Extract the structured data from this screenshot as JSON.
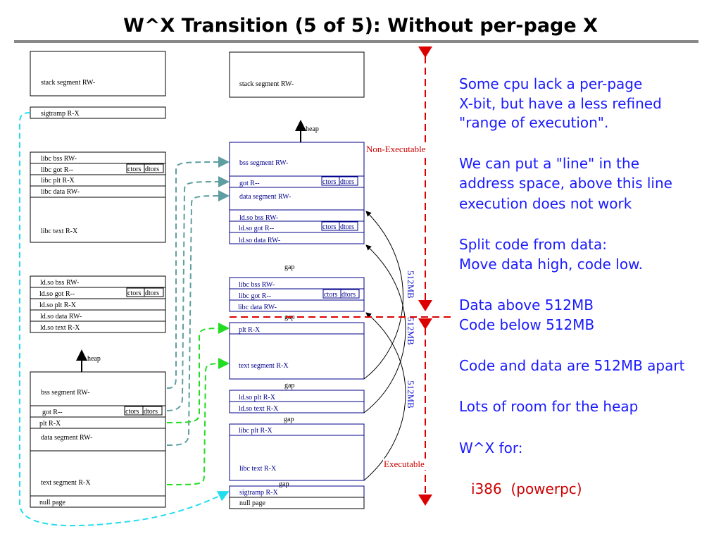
{
  "title": "W^X Transition (5 of 5): Without per-page X",
  "left": {
    "stack": "stack segment RW-",
    "sigtramp": "sigtramp R-X",
    "libc": [
      "libc bss RW-",
      "libc got R--",
      "libc plt R-X",
      "libc data RW-",
      "libc text R-X"
    ],
    "ldso": [
      "ld.so bss RW-",
      "ld.so got R--",
      "ld.so plt R-X",
      "ld.so data RW-",
      "ld.so text R-X"
    ],
    "heap": "heap",
    "main": [
      "bss segment RW-",
      "got R--",
      "plt R-X",
      "data segment RW-",
      "text segment R-X",
      "null page"
    ]
  },
  "right": {
    "stack": "stack segment RW-",
    "heap": "heap",
    "data_block": [
      "bss segment RW-",
      "got R--",
      "data segment RW-",
      "ld.so bss RW-",
      "ld.so got R--",
      "ld.so data RW-"
    ],
    "libc_data": [
      "libc bss RW-",
      "libc got R--",
      "libc data RW-"
    ],
    "main_text": [
      "plt R-X",
      "text segment R-X"
    ],
    "ldso_text": [
      "ld.so plt R-X",
      "ld.so text R-X"
    ],
    "libc_text": [
      "libc plt R-X",
      "libc text R-X"
    ],
    "bottom": [
      "sigtramp R-X",
      "null page"
    ],
    "gap": "gap"
  },
  "ctors": "ctors",
  "dtors": "dtors",
  "labels": {
    "non_executable": "Non-Executable",
    "executable": "Executable",
    "size": "512MB"
  },
  "notes": [
    "Some cpu lack a per-page",
    "X-bit, but have a less refined",
    "\"range of execution\".",
    "We can put a \"line\" in the",
    "address space, above this line",
    "execution does not work",
    "Split code from data:",
    "Move data high, code low.",
    "Data above 512MB",
    "Code below 512MB",
    "Code and data are 512MB apart",
    "Lots of room for the heap",
    "W^X for:",
    "i386  (powerpc)"
  ],
  "colors": {
    "note": "#1a1aff",
    "red": "#cc0000",
    "box_blue": "#00008b",
    "teal": "#5f9ea0",
    "green": "#22dd22",
    "cyan": "#22ddee"
  }
}
